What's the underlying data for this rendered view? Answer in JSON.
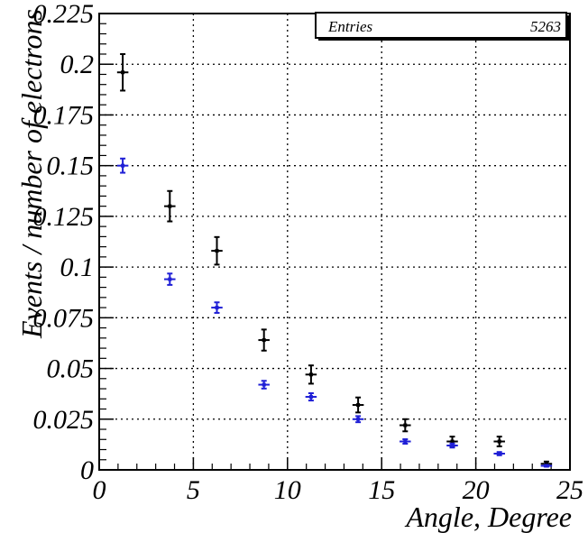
{
  "chart_data": {
    "type": "scatter",
    "title": "",
    "xlabel": "Angle, Degree",
    "ylabel": "Events / number of electrons",
    "xlim": [
      0,
      25
    ],
    "ylim": [
      0,
      0.225
    ],
    "grid": true,
    "x_ticks": [
      "0",
      "5",
      "10",
      "15",
      "20",
      "25"
    ],
    "y_ticks": [
      "0",
      "0.025",
      "0.05",
      "0.075",
      "0.1",
      "0.125",
      "0.15",
      "0.175",
      "0.2",
      "0.225"
    ],
    "x_tick_values": [
      0,
      5,
      10,
      15,
      20,
      25
    ],
    "y_tick_values": [
      0,
      0.025,
      0.05,
      0.075,
      0.1,
      0.125,
      0.15,
      0.175,
      0.2,
      0.225
    ],
    "stats": {
      "label": "Entries",
      "value": "5263"
    },
    "series": [
      {
        "color": "#000000",
        "x_error": 0.3,
        "points": [
          {
            "x": 1.25,
            "y": 0.196,
            "err": 0.009
          },
          {
            "x": 3.75,
            "y": 0.13,
            "err": 0.0075
          },
          {
            "x": 6.25,
            "y": 0.108,
            "err": 0.0068
          },
          {
            "x": 8.75,
            "y": 0.064,
            "err": 0.0052
          },
          {
            "x": 11.25,
            "y": 0.047,
            "err": 0.0045
          },
          {
            "x": 13.75,
            "y": 0.032,
            "err": 0.0037
          },
          {
            "x": 16.25,
            "y": 0.022,
            "err": 0.003
          },
          {
            "x": 18.75,
            "y": 0.014,
            "err": 0.0024
          },
          {
            "x": 21.25,
            "y": 0.014,
            "err": 0.0024
          },
          {
            "x": 23.75,
            "y": 0.003,
            "err": 0.0011
          }
        ]
      },
      {
        "color": "#1f1fd6",
        "x_error": 0.3,
        "points": [
          {
            "x": 1.25,
            "y": 0.15,
            "err": 0.0035
          },
          {
            "x": 3.75,
            "y": 0.094,
            "err": 0.0028
          },
          {
            "x": 6.25,
            "y": 0.08,
            "err": 0.0026
          },
          {
            "x": 8.75,
            "y": 0.042,
            "err": 0.0019
          },
          {
            "x": 11.25,
            "y": 0.036,
            "err": 0.0018
          },
          {
            "x": 13.75,
            "y": 0.025,
            "err": 0.0015
          },
          {
            "x": 16.25,
            "y": 0.014,
            "err": 0.0011
          },
          {
            "x": 18.75,
            "y": 0.012,
            "err": 0.001
          },
          {
            "x": 21.25,
            "y": 0.008,
            "err": 0.0008
          },
          {
            "x": 23.75,
            "y": 0.002,
            "err": 0.0004
          }
        ]
      }
    ]
  }
}
